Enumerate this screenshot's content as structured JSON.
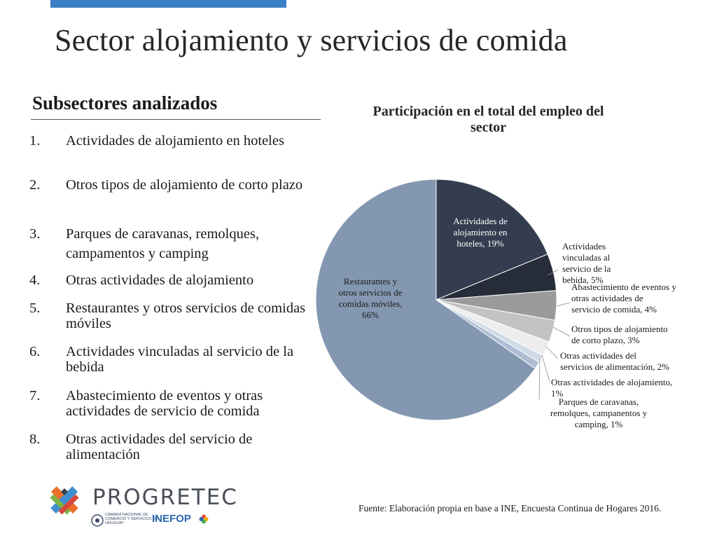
{
  "slide": {
    "title": "Sector alojamiento y servicios de comida",
    "section_heading": "Subsectores analizados"
  },
  "subsectors": [
    {
      "num": "1.",
      "text": "Actividades de alojamiento en hoteles"
    },
    {
      "num": "2.",
      "text": "Otros tipos de alojamiento de corto plazo"
    },
    {
      "num": "3.",
      "text": "Parques de caravanas, remolques, campamentos y camping"
    },
    {
      "num": "4.",
      "text": "Otras actividades de alojamiento"
    },
    {
      "num": "5.",
      "text": "Restaurantes y otros servicios de comidas móviles"
    },
    {
      "num": "6.",
      "text": "Actividades vinculadas al servicio de la bebida"
    },
    {
      "num": "7.",
      "text": "Abastecimiento de eventos y otras actividades de servicio de comida"
    },
    {
      "num": "8.",
      "text": "Otras actividades del servicio de alimentación"
    }
  ],
  "chart_data": {
    "type": "pie",
    "title": "Participación en el total del empleo del sector",
    "slices": [
      {
        "label": "Actividades de alojamiento en hoteles",
        "value": 19,
        "display": "Actividades de alojamiento en hoteles, 19%",
        "color": "#333d4f"
      },
      {
        "label": "Actividades vinculadas al servicio de la bebida",
        "value": 5,
        "display": "Actividades vinculadas al servicio de la bebida, 5%",
        "color": "#262c38"
      },
      {
        "label": "Abastecimiento de eventos y otras actividades de servicio de comida",
        "value": 4,
        "display": "Abastecimiento de eventos y otras actividades de servicio de comida, 4%",
        "color": "#9b9b9b"
      },
      {
        "label": "Otros tipos de alojamiento de corto plazo",
        "value": 3,
        "display": "Otros tipos de alojamiento de corto plazo, 3%",
        "color": "#c3c3c3"
      },
      {
        "label": "Otras actividades del servicios de alimentación",
        "value": 2,
        "display": "Otras actividades del servicios de alimentación, 2%",
        "color": "#ededed"
      },
      {
        "label": "Otras actividades de alojamiento",
        "value": 1,
        "display": "Otras actividades de alojamiento, 1%",
        "color": "#d0d9e6"
      },
      {
        "label": "Parques de caravanas, remolques, campanentos y camping",
        "value": 1,
        "display": "Parques de caravanas, remolques, campanentos y camping, 1%",
        "color": "#aebdd4"
      },
      {
        "label": "Restaurantes y otros servicios de comidas móviles",
        "value": 66,
        "display": "Restaurantes y otros servicios de comidas móviles, 66%",
        "color": "#8497b0"
      }
    ],
    "legend": "none",
    "labels": "slice labels with leader lines"
  },
  "source": "Fuente: Elaboración propia en base a INE, Encuesta Continua de Hogares 2016.",
  "logos": {
    "progretec": "PROGRETEC",
    "camara": "Cámara Nacional de Comercio y Servicios del Uruguay",
    "inefop": "INEFOP"
  },
  "colors": {
    "accent_bar": "#3b7fc4",
    "title_text": "#262626"
  }
}
